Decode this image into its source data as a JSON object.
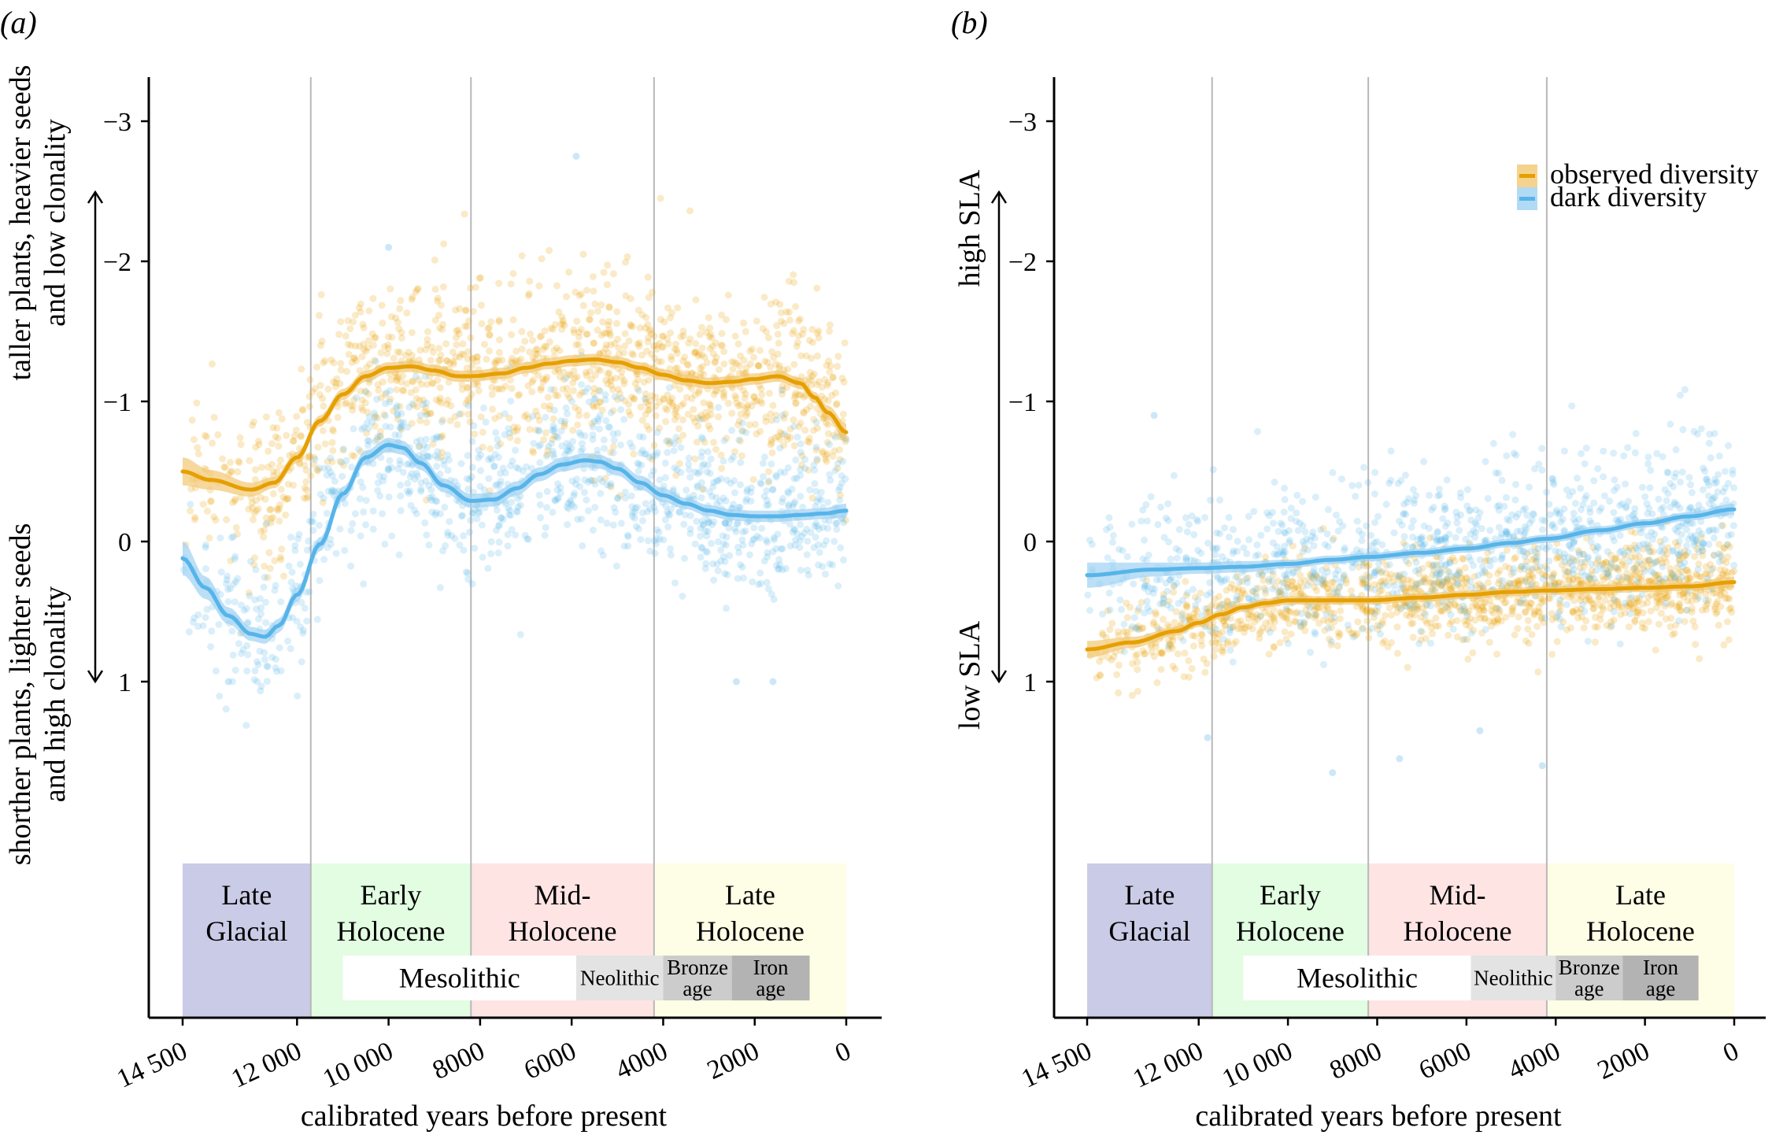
{
  "figure": {
    "panels": [
      "(a)",
      "(b)"
    ]
  },
  "colors": {
    "observed": "#E69F00",
    "dark": "#56B4E9",
    "observed_band": "#F2C873",
    "dark_band": "#9ED2F2",
    "period_late_glacial": "#CACBE6",
    "period_early_holocene": "#E2FDE2",
    "period_mid_holocene": "#FFE4E4",
    "period_late_holocene": "#FEFEE6",
    "arch_mesolithic": "#FFFFFF",
    "arch_neolithic": "#E3E3E3",
    "arch_bronze": "#CCCCCC",
    "arch_iron": "#B3B3B3",
    "boundary_line": "#B8B8B8"
  },
  "chart_data": [
    {
      "panel": "(a)",
      "type": "scatter",
      "title": "",
      "xlabel": "calibrated years before present",
      "ylabel_upper": [
        "taller plants, heavier seeds",
        "and low clonality"
      ],
      "ylabel_lower": [
        "shorther plants, lighter seeds",
        "and high clonality"
      ],
      "xlim": [
        14500,
        0
      ],
      "ylim": [
        -3.3,
        2.4
      ],
      "y_inverted": true,
      "xticks": [
        14500,
        12000,
        10000,
        8000,
        6000,
        4000,
        2000,
        0
      ],
      "xtick_labels": [
        "14 500",
        "12 000",
        "10 000",
        "8000",
        "6000",
        "4000",
        "2000",
        "0"
      ],
      "yticks": [
        -3,
        -2,
        -1,
        0,
        1
      ],
      "ytick_labels": [
        "−3",
        "−2",
        "−1",
        "0",
        "1"
      ],
      "grid": false,
      "legend": null,
      "period_boundaries": [
        11700,
        8200,
        4200
      ],
      "series": [
        {
          "name": "observed diversity",
          "color_key": "observed",
          "smooth_x": [
            14500,
            13900,
            13000,
            12500,
            12000,
            11500,
            11000,
            10500,
            10000,
            9500,
            9000,
            8500,
            8200,
            7500,
            7000,
            6500,
            6000,
            5500,
            5000,
            4500,
            4000,
            3500,
            3000,
            2500,
            2000,
            1500,
            1000,
            700,
            400,
            0
          ],
          "smooth_y": [
            -0.5,
            -0.44,
            -0.37,
            -0.42,
            -0.6,
            -0.86,
            -1.05,
            -1.18,
            -1.24,
            -1.25,
            -1.22,
            -1.18,
            -1.18,
            -1.2,
            -1.24,
            -1.27,
            -1.29,
            -1.3,
            -1.28,
            -1.24,
            -1.19,
            -1.15,
            -1.13,
            -1.14,
            -1.16,
            -1.18,
            -1.13,
            -1.03,
            -0.92,
            -0.78
          ],
          "ci_halfwidth": [
            0.1,
            0.07,
            0.05,
            0.04,
            0.04,
            0.04,
            0.04,
            0.04,
            0.04,
            0.04,
            0.04,
            0.04,
            0.04,
            0.04,
            0.04,
            0.04,
            0.04,
            0.04,
            0.04,
            0.04,
            0.04,
            0.04,
            0.04,
            0.04,
            0.04,
            0.04,
            0.04,
            0.04,
            0.05,
            0.06
          ],
          "scatter": {
            "n": 1300,
            "sd": 0.3,
            "density_bias_recent": true
          }
        },
        {
          "name": "dark diversity",
          "color_key": "dark",
          "smooth_x": [
            14500,
            14000,
            13500,
            13000,
            12700,
            12400,
            12000,
            11500,
            11000,
            10500,
            10000,
            9700,
            9300,
            8800,
            8200,
            7700,
            7200,
            6700,
            6200,
            5700,
            5400,
            5000,
            4500,
            4000,
            3500,
            3000,
            2500,
            2000,
            1500,
            1000,
            500,
            0
          ],
          "smooth_y": [
            0.12,
            0.33,
            0.53,
            0.66,
            0.68,
            0.6,
            0.38,
            0.02,
            -0.34,
            -0.6,
            -0.69,
            -0.67,
            -0.56,
            -0.4,
            -0.29,
            -0.3,
            -0.38,
            -0.48,
            -0.55,
            -0.58,
            -0.57,
            -0.52,
            -0.42,
            -0.33,
            -0.27,
            -0.22,
            -0.19,
            -0.18,
            -0.18,
            -0.19,
            -0.2,
            -0.22
          ],
          "ci_halfwidth": [
            0.12,
            0.08,
            0.06,
            0.05,
            0.05,
            0.05,
            0.05,
            0.05,
            0.05,
            0.05,
            0.05,
            0.05,
            0.05,
            0.05,
            0.05,
            0.05,
            0.05,
            0.05,
            0.05,
            0.05,
            0.05,
            0.05,
            0.05,
            0.05,
            0.04,
            0.04,
            0.04,
            0.04,
            0.04,
            0.04,
            0.04,
            0.05
          ],
          "scatter": {
            "n": 1100,
            "sd": 0.28,
            "density_bias_recent": true
          },
          "outliers": [
            [
              5900,
              -2.75
            ],
            [
              10000,
              -2.1
            ],
            [
              13500,
              1.0
            ],
            [
              2400,
              1.0
            ],
            [
              1600,
              1.0
            ]
          ]
        }
      ]
    },
    {
      "panel": "(b)",
      "type": "scatter",
      "title": "",
      "xlabel": "calibrated years before present",
      "ylabel_upper": [
        "high SLA"
      ],
      "ylabel_lower": [
        "low SLA"
      ],
      "xlim": [
        14500,
        0
      ],
      "ylim": [
        -3.3,
        2.4
      ],
      "y_inverted": true,
      "xticks": [
        14500,
        12000,
        10000,
        8000,
        6000,
        4000,
        2000,
        0
      ],
      "xtick_labels": [
        "14 500",
        "12 000",
        "10 000",
        "8000",
        "6000",
        "4000",
        "2000",
        "0"
      ],
      "yticks": [
        -3,
        -2,
        -1,
        0,
        1
      ],
      "ytick_labels": [
        "−3",
        "−2",
        "−1",
        "0",
        "1"
      ],
      "grid": false,
      "legend": "top-right",
      "period_boundaries": [
        11700,
        8200,
        4200
      ],
      "series": [
        {
          "name": "observed diversity",
          "color_key": "observed",
          "smooth_x": [
            14500,
            13500,
            12500,
            12000,
            11500,
            11000,
            10500,
            10000,
            9000,
            8200,
            7000,
            6000,
            5000,
            4200,
            3000,
            2000,
            1000,
            0
          ],
          "smooth_y": [
            0.77,
            0.72,
            0.64,
            0.58,
            0.52,
            0.47,
            0.44,
            0.42,
            0.42,
            0.42,
            0.4,
            0.38,
            0.36,
            0.35,
            0.34,
            0.33,
            0.32,
            0.29
          ],
          "ci_halfwidth": [
            0.06,
            0.04,
            0.03,
            0.03,
            0.03,
            0.03,
            0.03,
            0.03,
            0.03,
            0.03,
            0.03,
            0.03,
            0.03,
            0.03,
            0.03,
            0.03,
            0.03,
            0.04
          ],
          "scatter": {
            "n": 1300,
            "sd": 0.16,
            "density_bias_recent": true
          }
        },
        {
          "name": "dark diversity",
          "color_key": "dark",
          "smooth_x": [
            14500,
            13000,
            12000,
            11000,
            10000,
            9000,
            8200,
            7000,
            6000,
            5000,
            4200,
            3000,
            2000,
            1000,
            0
          ],
          "smooth_y": [
            0.24,
            0.2,
            0.19,
            0.18,
            0.16,
            0.13,
            0.11,
            0.08,
            0.05,
            0.01,
            -0.02,
            -0.08,
            -0.13,
            -0.18,
            -0.23
          ],
          "ci_halfwidth": [
            0.09,
            0.05,
            0.04,
            0.04,
            0.03,
            0.03,
            0.03,
            0.03,
            0.03,
            0.03,
            0.03,
            0.03,
            0.03,
            0.03,
            0.04
          ],
          "scatter": {
            "n": 1100,
            "sd": 0.28,
            "density_bias_recent": true
          },
          "outliers": [
            [
              13000,
              -0.9
            ],
            [
              11800,
              1.4
            ],
            [
              9000,
              1.65
            ],
            [
              7500,
              1.55
            ],
            [
              4300,
              1.6
            ],
            [
              5700,
              1.35
            ]
          ]
        }
      ]
    }
  ],
  "legend": {
    "items": [
      {
        "label": "observed diversity",
        "color_key": "observed"
      },
      {
        "label": "dark diversity",
        "color_key": "dark"
      }
    ]
  },
  "periods": [
    {
      "label_lines": [
        "Late",
        "Glacial"
      ],
      "start": 14500,
      "end": 11700,
      "color_key": "period_late_glacial"
    },
    {
      "label_lines": [
        "Early",
        "Holocene"
      ],
      "start": 11700,
      "end": 8200,
      "color_key": "period_early_holocene"
    },
    {
      "label_lines": [
        "Mid-",
        "Holocene"
      ],
      "start": 8200,
      "end": 4200,
      "color_key": "period_mid_holocene"
    },
    {
      "label_lines": [
        "Late",
        "Holocene"
      ],
      "start": 4200,
      "end": 0,
      "color_key": "period_late_holocene"
    }
  ],
  "archaeological_periods": [
    {
      "label_lines": [
        "Mesolithic"
      ],
      "start": 11000,
      "end": 5900,
      "color_key": "arch_mesolithic",
      "size": "big"
    },
    {
      "label_lines": [
        "Neolithic"
      ],
      "start": 5900,
      "end": 4000,
      "color_key": "arch_neolithic",
      "size": "small"
    },
    {
      "label_lines": [
        "Bronze",
        "age"
      ],
      "start": 4000,
      "end": 2500,
      "color_key": "arch_bronze",
      "size": "small"
    },
    {
      "label_lines": [
        "Iron",
        "age"
      ],
      "start": 2500,
      "end": 800,
      "color_key": "arch_iron",
      "size": "small"
    }
  ]
}
